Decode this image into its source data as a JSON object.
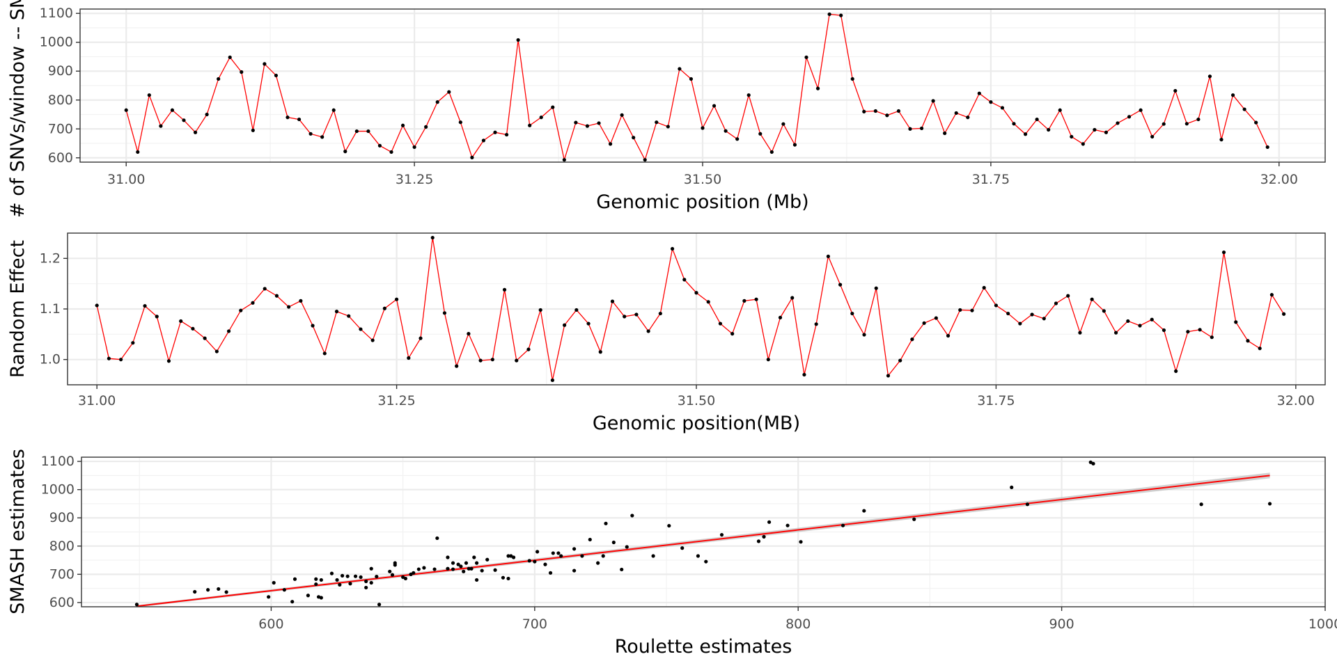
{
  "chart_data": [
    {
      "type": "line",
      "title": "",
      "xlabel": "Genomic position (Mb)",
      "ylabel": "# of SNVs/window -- SMASH",
      "xlim": [
        30.96,
        32.04
      ],
      "ylim": [
        585,
        1115
      ],
      "xticks": [
        31.0,
        31.25,
        31.5,
        31.75,
        32.0
      ],
      "xtick_labels": [
        "31.00",
        "31.25",
        "31.50",
        "31.75",
        "32.00"
      ],
      "yticks": [
        600,
        700,
        800,
        900,
        1000,
        1100
      ],
      "ytick_labels": [
        "600",
        "700",
        "800",
        "900",
        "1000",
        "1100"
      ],
      "grid": true,
      "colors": {
        "line": "#ff0000",
        "point": "#000000"
      },
      "series": [
        {
          "x": [
            31.0,
            31.01,
            31.02,
            31.03,
            31.04,
            31.05,
            31.06,
            31.07,
            31.08,
            31.09,
            31.1,
            31.11,
            31.12,
            31.13,
            31.14,
            31.15,
            31.16,
            31.17,
            31.18,
            31.19,
            31.2,
            31.21,
            31.22,
            31.23,
            31.24,
            31.25,
            31.26,
            31.27,
            31.28,
            31.29,
            31.3,
            31.31,
            31.32,
            31.33,
            31.34,
            31.35,
            31.36,
            31.37,
            31.38,
            31.39,
            31.4,
            31.41,
            31.42,
            31.43,
            31.44,
            31.45,
            31.46,
            31.47,
            31.48,
            31.49,
            31.5,
            31.51,
            31.52,
            31.53,
            31.54,
            31.55,
            31.56,
            31.57,
            31.58,
            31.59,
            31.6,
            31.61,
            31.62,
            31.63,
            31.64,
            31.65,
            31.66,
            31.67,
            31.68,
            31.69,
            31.7,
            31.71,
            31.72,
            31.73,
            31.74,
            31.75,
            31.76,
            31.77,
            31.78,
            31.79,
            31.8,
            31.81,
            31.82,
            31.83,
            31.84,
            31.85,
            31.86,
            31.87,
            31.88,
            31.89,
            31.9,
            31.91,
            31.92,
            31.93,
            31.94,
            31.95,
            31.96,
            31.97,
            31.98,
            31.99
          ],
          "y": [
            765,
            620,
            817,
            710,
            765,
            730,
            688,
            750,
            873,
            948,
            897,
            695,
            925,
            885,
            740,
            733,
            683,
            672,
            765,
            622,
            692,
            692,
            642,
            620,
            712,
            637,
            707,
            793,
            828,
            723,
            601,
            660,
            688,
            680,
            1008,
            712,
            740,
            775,
            593,
            722,
            710,
            720,
            648,
            748,
            670,
            593,
            723,
            708,
            908,
            873,
            703,
            780,
            693,
            665,
            817,
            683,
            620,
            717,
            645,
            948,
            840,
            1097,
            1093,
            873,
            760,
            762,
            747,
            762,
            700,
            702,
            797,
            685,
            755,
            740,
            823,
            793,
            773,
            718,
            682,
            733,
            697,
            765,
            673,
            648,
            697,
            688,
            720,
            742,
            765,
            673,
            717,
            832,
            718,
            733,
            882,
            663,
            817,
            768,
            722,
            637
          ]
        }
      ]
    },
    {
      "type": "line",
      "title": "",
      "xlabel": "Genomic position(MB)",
      "ylabel": "Random Effect",
      "xlim": [
        30.9755,
        32.0245
      ],
      "ylim": [
        0.95,
        1.25
      ],
      "xticks": [
        31.0,
        31.25,
        31.5,
        31.75,
        32.0
      ],
      "xtick_labels": [
        "31.00",
        "31.25",
        "31.50",
        "31.75",
        "32.00"
      ],
      "yticks": [
        1.0,
        1.1,
        1.2
      ],
      "ytick_labels": [
        "1.0",
        "1.1",
        "1.2"
      ],
      "grid": true,
      "colors": {
        "line": "#ff0000",
        "point": "#000000"
      },
      "series": [
        {
          "x": [
            31.0,
            31.01,
            31.02,
            31.03,
            31.04,
            31.05,
            31.06,
            31.07,
            31.08,
            31.09,
            31.1,
            31.11,
            31.12,
            31.13,
            31.14,
            31.15,
            31.16,
            31.17,
            31.18,
            31.19,
            31.2,
            31.21,
            31.22,
            31.23,
            31.24,
            31.25,
            31.26,
            31.27,
            31.28,
            31.29,
            31.3,
            31.31,
            31.32,
            31.33,
            31.34,
            31.35,
            31.36,
            31.37,
            31.38,
            31.39,
            31.4,
            31.41,
            31.42,
            31.43,
            31.44,
            31.45,
            31.46,
            31.47,
            31.48,
            31.49,
            31.5,
            31.51,
            31.52,
            31.53,
            31.54,
            31.55,
            31.56,
            31.57,
            31.58,
            31.59,
            31.6,
            31.61,
            31.62,
            31.63,
            31.64,
            31.65,
            31.66,
            31.67,
            31.68,
            31.69,
            31.7,
            31.71,
            31.72,
            31.73,
            31.74,
            31.75,
            31.76,
            31.77,
            31.78,
            31.79,
            31.8,
            31.81,
            31.82,
            31.83,
            31.84,
            31.85,
            31.86,
            31.87,
            31.88,
            31.89,
            31.9,
            31.91,
            31.92,
            31.93,
            31.94,
            31.95,
            31.96,
            31.97,
            31.98,
            31.99
          ],
          "y": [
            1.107,
            1.002,
            1.0,
            1.033,
            1.106,
            1.085,
            0.997,
            1.076,
            1.061,
            1.042,
            1.016,
            1.056,
            1.097,
            1.112,
            1.14,
            1.126,
            1.104,
            1.116,
            1.067,
            1.012,
            1.095,
            1.086,
            1.06,
            1.038,
            1.101,
            1.119,
            1.003,
            1.042,
            1.241,
            1.092,
            0.987,
            1.051,
            0.998,
            1.0,
            1.138,
            0.998,
            1.02,
            1.098,
            0.959,
            1.068,
            1.098,
            1.071,
            1.015,
            1.115,
            1.085,
            1.089,
            1.056,
            1.091,
            1.219,
            1.158,
            1.132,
            1.114,
            1.071,
            1.051,
            1.116,
            1.119,
            1.0,
            1.083,
            1.122,
            0.97,
            1.07,
            1.204,
            1.148,
            1.091,
            1.049,
            1.141,
            0.968,
            0.998,
            1.04,
            1.072,
            1.082,
            1.047,
            1.098,
            1.097,
            1.142,
            1.107,
            1.091,
            1.071,
            1.089,
            1.081,
            1.111,
            1.126,
            1.053,
            1.119,
            1.096,
            1.053,
            1.076,
            1.067,
            1.079,
            1.058,
            0.977,
            1.055,
            1.059,
            1.044,
            1.212,
            1.074,
            1.037,
            1.022,
            1.128,
            1.09
          ]
        }
      ]
    },
    {
      "type": "scatter",
      "title": "",
      "xlabel": "Roulette estimates",
      "ylabel": "SMASH estimates",
      "xlim": [
        528,
        1000
      ],
      "ylim": [
        585,
        1115
      ],
      "xticks": [
        600,
        700,
        800,
        900,
        1000
      ],
      "xtick_labels": [
        "600",
        "700",
        "800",
        "900",
        "1000"
      ],
      "yticks": [
        600,
        700,
        800,
        900,
        1000,
        1100
      ],
      "ytick_labels": [
        "600",
        "700",
        "800",
        "900",
        "1000",
        "1100"
      ],
      "grid": true,
      "colors": {
        "point": "#000000",
        "fit_line": "#ff0000",
        "ci_band": "#b3b3b3"
      },
      "fit_line": {
        "x": [
          549,
          979
        ],
        "y": [
          587,
          1050
        ],
        "ci_halfwidth_start": 4,
        "ci_halfwidth_end": 10
      },
      "series": [
        {
          "x": [
            549,
            571,
            576,
            580,
            583,
            599,
            601,
            605,
            608,
            609,
            614,
            617,
            617,
            618,
            619,
            619,
            623,
            625,
            626,
            627,
            629,
            630,
            632,
            634,
            636,
            636,
            638,
            638,
            640,
            641,
            645,
            646,
            647,
            647,
            650,
            651,
            653,
            654,
            656,
            658,
            662,
            663,
            667,
            667,
            669,
            669,
            671,
            672,
            673,
            674,
            675,
            676,
            677,
            678,
            678,
            680,
            682,
            685,
            688,
            690,
            690,
            691,
            692,
            698,
            700,
            701,
            704,
            706,
            707,
            709,
            710,
            715,
            715,
            718,
            721,
            724,
            726,
            727,
            730,
            733,
            735,
            737,
            745,
            751,
            756,
            762,
            765,
            771,
            785,
            787,
            789,
            796,
            801,
            817,
            825,
            844,
            881,
            887,
            911,
            912,
            953,
            979
          ],
          "y": [
            593,
            638,
            645,
            648,
            637,
            620,
            670,
            645,
            603,
            683,
            625,
            683,
            665,
            620,
            617,
            680,
            703,
            680,
            663,
            695,
            693,
            667,
            693,
            690,
            653,
            675,
            670,
            720,
            692,
            593,
            710,
            698,
            740,
            733,
            690,
            685,
            700,
            705,
            718,
            723,
            718,
            828,
            720,
            760,
            740,
            718,
            735,
            728,
            710,
            740,
            720,
            720,
            760,
            680,
            740,
            713,
            752,
            715,
            688,
            685,
            765,
            765,
            760,
            748,
            745,
            780,
            735,
            705,
            775,
            775,
            765,
            713,
            790,
            765,
            823,
            740,
            765,
            880,
            813,
            717,
            797,
            908,
            765,
            872,
            793,
            765,
            745,
            840,
            817,
            833,
            885,
            873,
            815,
            873,
            925,
            895,
            1008,
            948,
            1097,
            1092,
            948,
            950
          ]
        }
      ]
    }
  ]
}
